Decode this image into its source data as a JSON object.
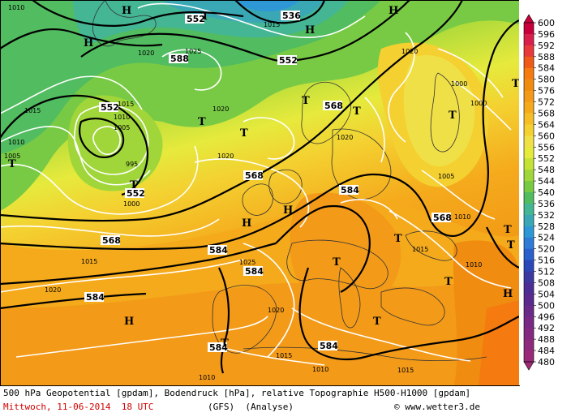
{
  "caption": {
    "line1": "500 hPa Geopotential [gpdam], Bodendruck [hPa], relative Topographie H500-H1000 [gpdam]",
    "date": "Mittwoch, 11-06-2014  18 UTC",
    "model": "(GFS)  (Analyse)",
    "credit": "© www.wetter3.de"
  },
  "legend": {
    "values": [
      "600",
      "596",
      "592",
      "588",
      "584",
      "580",
      "576",
      "572",
      "568",
      "564",
      "560",
      "556",
      "552",
      "548",
      "544",
      "540",
      "536",
      "532",
      "528",
      "524",
      "520",
      "516",
      "512",
      "508",
      "504",
      "500",
      "496",
      "492",
      "488",
      "484",
      "480"
    ],
    "colors": [
      "#c8003c",
      "#d8204a",
      "#e83a3a",
      "#f05a18",
      "#f57a10",
      "#f08c10",
      "#f39a18",
      "#f5aa1c",
      "#f5be26",
      "#f4d030",
      "#f0e048",
      "#e6ea3c",
      "#c4e236",
      "#a0d63a",
      "#78ca44",
      "#52bc60",
      "#44b694",
      "#3aa8b4",
      "#2e98d6",
      "#2e7cd6",
      "#2a60cc",
      "#2c48b8",
      "#3c3aa0",
      "#4c2e94",
      "#5a2a8c",
      "#6a2a88",
      "#782a84",
      "#842a80",
      "#8e2a7c",
      "#982a78",
      "#a02a74"
    ]
  },
  "map": {
    "geopotential_labels": [
      "552",
      "536",
      "552",
      "588",
      "552",
      "568",
      "552",
      "568",
      "568",
      "584",
      "568",
      "584",
      "584",
      "584",
      "584",
      "584"
    ],
    "pressure_labels": [
      "1010",
      "1015",
      "1020",
      "1025",
      "1015",
      "1020",
      "1020",
      "1005",
      "1010",
      "1015",
      "995",
      "1000",
      "1005",
      "1010",
      "1015",
      "1020",
      "1025",
      "1020",
      "1015",
      "1010",
      "1010",
      "1015",
      "1020",
      "1000",
      "1000",
      "1005",
      "1010",
      "1015",
      "1010",
      "1020"
    ],
    "highs": [
      "H",
      "H",
      "H",
      "H",
      "H",
      "H",
      "H",
      "H"
    ],
    "lows": [
      "T",
      "T",
      "T",
      "T",
      "T",
      "T",
      "T",
      "T",
      "T",
      "T",
      "T",
      "T",
      "T",
      "T",
      "T",
      "T"
    ]
  }
}
